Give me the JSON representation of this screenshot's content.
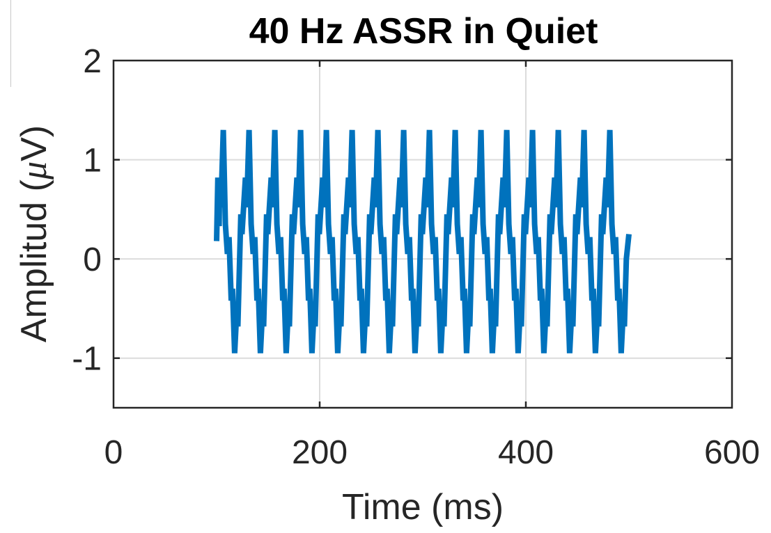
{
  "chart_data": {
    "type": "line",
    "title": "40 Hz ASSR in Quiet",
    "xlabel": "Time (ms)",
    "ylabel_prefix": "Amplitud (",
    "ylabel_symbol": "μ",
    "ylabel_suffix": "V)",
    "xlim": [
      0,
      600
    ],
    "ylim": [
      -1.5,
      2
    ],
    "xticks": [
      0,
      200,
      400,
      600
    ],
    "xtick_labels": [
      "0",
      "200",
      "400",
      "600"
    ],
    "yticks": [
      -1,
      0,
      1,
      2
    ],
    "ytick_labels": [
      "-1",
      "0",
      "1",
      "2"
    ],
    "grid": true,
    "series": [
      {
        "color": "#0072BD",
        "start_ms": 100,
        "end_ms": 500,
        "period_ms": 25,
        "peak_offset_ms": 6.5,
        "trough_offset_ms": 17.5,
        "shoulder_offset_ms": 3,
        "peak_value": 1.3,
        "shoulder_value": 0.82,
        "trough_value": -0.95,
        "start_value": 0.18,
        "end_value": 0.25
      }
    ]
  }
}
